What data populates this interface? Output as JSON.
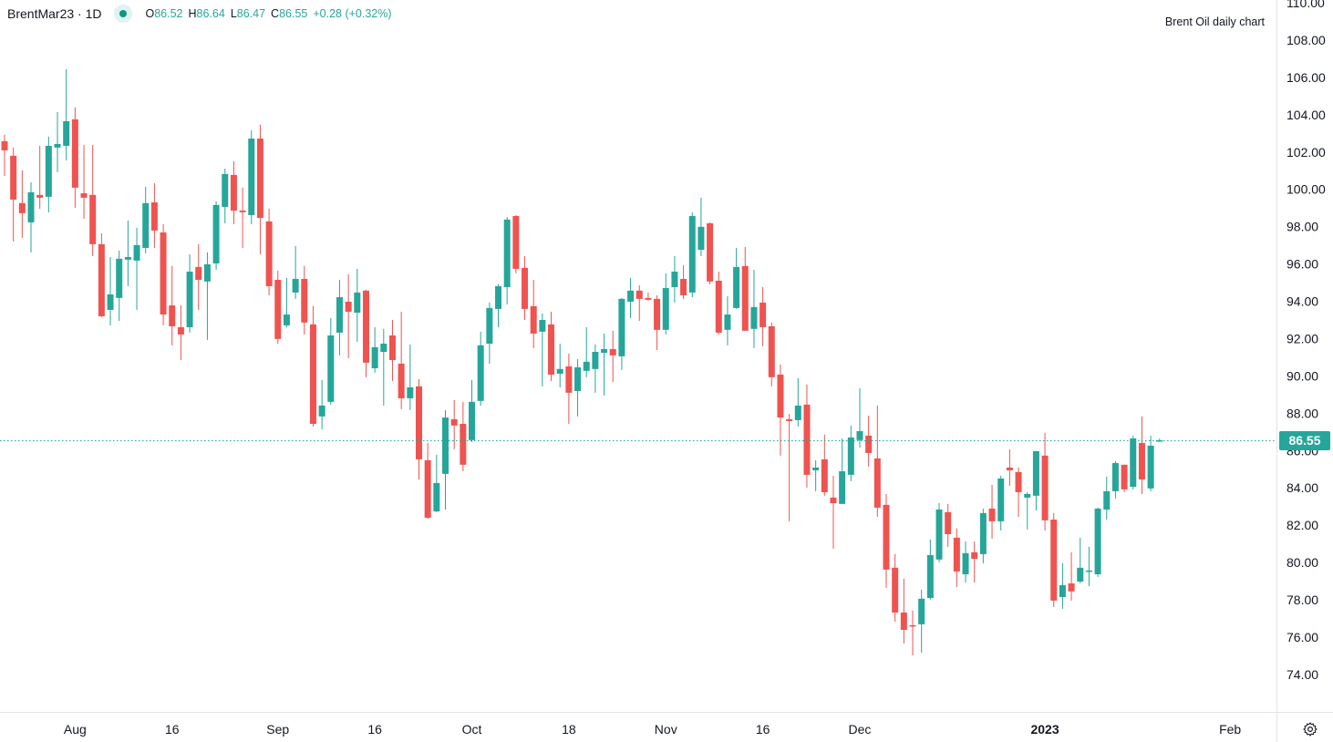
{
  "header": {
    "symbol": "BrentMar23 · 1D",
    "status_icon": "market-open-dot-icon",
    "ohlc": {
      "o_label": "O",
      "o": "86.52",
      "h_label": "H",
      "h": "86.64",
      "l_label": "L",
      "l": "86.47",
      "c_label": "C",
      "c": "86.55",
      "change": "+0.28 (+0.32%)"
    }
  },
  "annotation": "Brent Oil daily chart",
  "settings_icon": "gear-icon",
  "colors": {
    "up": "#26a69a",
    "down": "#ef5350",
    "price_line": "#26a69a",
    "axis_border": "#e0e3eb"
  },
  "chart_data": {
    "type": "candlestick",
    "title": "",
    "xlabel": "",
    "ylabel": "",
    "ylim": [
      74,
      110
    ],
    "grid": false,
    "current_price": "86.55",
    "y_ticks": [
      "74.00",
      "76.00",
      "78.00",
      "80.00",
      "82.00",
      "84.00",
      "86.00",
      "88.00",
      "90.00",
      "92.00",
      "94.00",
      "96.00",
      "98.00",
      "100.00",
      "102.00",
      "104.00",
      "106.00",
      "108.00",
      "110.00"
    ],
    "x_ticks": [
      "Aug",
      "16",
      "Sep",
      "16",
      "Oct",
      "18",
      "Nov",
      "16",
      "Dec",
      "2023",
      "Feb"
    ],
    "ohlc_fields": [
      "open",
      "high",
      "low",
      "close"
    ],
    "candles": [
      [
        102.58,
        102.92,
        100.72,
        102.09
      ],
      [
        101.8,
        102.24,
        97.2,
        99.45
      ],
      [
        99.26,
        101.02,
        97.4,
        98.72
      ],
      [
        98.23,
        100.38,
        96.62,
        99.84
      ],
      [
        99.7,
        102.33,
        98.96,
        99.55
      ],
      [
        99.6,
        102.82,
        98.77,
        102.33
      ],
      [
        102.24,
        104.14,
        100.92,
        102.43
      ],
      [
        102.33,
        106.44,
        101.55,
        103.65
      ],
      [
        103.75,
        104.39,
        99.01,
        100.09
      ],
      [
        99.79,
        102.38,
        98.42,
        99.55
      ],
      [
        99.7,
        102.38,
        96.42,
        97.06
      ],
      [
        97.06,
        97.64,
        93.15,
        93.2
      ],
      [
        93.54,
        96.37,
        92.71,
        94.37
      ],
      [
        94.18,
        96.72,
        92.95,
        96.28
      ],
      [
        96.23,
        98.33,
        94.81,
        96.37
      ],
      [
        96.18,
        97.94,
        93.54,
        97.01
      ],
      [
        96.86,
        100.13,
        96.57,
        99.26
      ],
      [
        99.3,
        100.33,
        96.86,
        97.79
      ],
      [
        97.69,
        98.13,
        92.71,
        93.29
      ],
      [
        93.78,
        95.89,
        91.64,
        92.66
      ],
      [
        92.61,
        93.78,
        90.85,
        92.22
      ],
      [
        92.61,
        96.52,
        92.32,
        95.59
      ],
      [
        95.84,
        97.06,
        93.54,
        95.15
      ],
      [
        95.06,
        96.62,
        91.93,
        95.98
      ],
      [
        96.03,
        99.35,
        95.69,
        99.16
      ],
      [
        99.06,
        101.11,
        98.18,
        100.82
      ],
      [
        100.77,
        101.5,
        98.13,
        98.86
      ],
      [
        98.86,
        100.09,
        96.86,
        98.77
      ],
      [
        98.62,
        103.16,
        98.13,
        102.72
      ],
      [
        102.72,
        103.46,
        96.52,
        98.47
      ],
      [
        98.28,
        98.96,
        94.32,
        94.81
      ],
      [
        95.15,
        95.64,
        91.73,
        91.98
      ],
      [
        92.71,
        95.25,
        92.61,
        93.29
      ],
      [
        94.47,
        96.96,
        94.13,
        95.2
      ],
      [
        95.2,
        95.89,
        92.22,
        92.86
      ],
      [
        92.76,
        93.74,
        87.29,
        87.43
      ],
      [
        87.83,
        89.78,
        87.14,
        88.41
      ],
      [
        88.61,
        93.1,
        88.46,
        92.17
      ],
      [
        92.32,
        95.15,
        91.1,
        94.22
      ],
      [
        93.98,
        95.45,
        90.95,
        93.44
      ],
      [
        93.39,
        95.74,
        91.83,
        94.47
      ],
      [
        94.57,
        94.62,
        89.93,
        90.71
      ],
      [
        90.41,
        92.61,
        90.17,
        91.54
      ],
      [
        91.29,
        92.52,
        88.41,
        91.73
      ],
      [
        92.17,
        93.0,
        89.73,
        90.85
      ],
      [
        90.66,
        93.44,
        88.22,
        88.8
      ],
      [
        88.8,
        91.68,
        88.17,
        89.39
      ],
      [
        89.44,
        89.83,
        84.45,
        85.53
      ],
      [
        85.48,
        86.41,
        82.35,
        82.4
      ],
      [
        82.74,
        85.77,
        82.7,
        84.26
      ],
      [
        84.75,
        88.17,
        82.84,
        87.77
      ],
      [
        87.68,
        88.71,
        86.07,
        87.34
      ],
      [
        87.43,
        88.61,
        84.89,
        85.24
      ],
      [
        86.56,
        89.78,
        86.46,
        88.61
      ],
      [
        88.66,
        92.37,
        88.41,
        91.64
      ],
      [
        91.73,
        93.93,
        90.66,
        93.64
      ],
      [
        93.59,
        94.91,
        92.61,
        94.81
      ],
      [
        94.76,
        98.52,
        93.83,
        98.38
      ],
      [
        98.57,
        98.62,
        95.5,
        95.74
      ],
      [
        95.79,
        96.42,
        93.0,
        93.59
      ],
      [
        93.74,
        95.15,
        91.49,
        92.27
      ],
      [
        92.37,
        93.34,
        89.44,
        93.0
      ],
      [
        92.76,
        93.44,
        89.73,
        90.07
      ],
      [
        90.12,
        91.73,
        89.39,
        90.37
      ],
      [
        90.51,
        91.2,
        87.43,
        89.1
      ],
      [
        89.19,
        90.9,
        87.83,
        90.46
      ],
      [
        90.27,
        92.61,
        89.93,
        90.76
      ],
      [
        90.37,
        91.68,
        89.1,
        91.29
      ],
      [
        91.24,
        92.27,
        88.95,
        91.44
      ],
      [
        91.44,
        92.42,
        89.68,
        91.1
      ],
      [
        91.05,
        94.18,
        90.32,
        94.13
      ],
      [
        93.98,
        95.25,
        93.1,
        94.57
      ],
      [
        94.57,
        94.86,
        92.95,
        94.13
      ],
      [
        94.18,
        94.47,
        94.03,
        94.08
      ],
      [
        94.13,
        94.32,
        91.39,
        92.47
      ],
      [
        92.47,
        95.5,
        92.22,
        94.71
      ],
      [
        94.76,
        96.42,
        93.93,
        95.59
      ],
      [
        95.2,
        95.93,
        94.13,
        94.32
      ],
      [
        94.47,
        98.77,
        94.22,
        98.57
      ],
      [
        96.76,
        99.55,
        96.42,
        97.99
      ],
      [
        98.18,
        98.23,
        94.91,
        95.06
      ],
      [
        95.1,
        95.59,
        92.22,
        92.32
      ],
      [
        92.47,
        94.27,
        91.64,
        93.29
      ],
      [
        93.64,
        96.86,
        93.59,
        95.84
      ],
      [
        95.89,
        96.91,
        92.42,
        92.42
      ],
      [
        92.52,
        95.69,
        91.49,
        93.69
      ],
      [
        93.93,
        94.76,
        91.59,
        92.61
      ],
      [
        92.66,
        92.86,
        89.44,
        89.93
      ],
      [
        90.07,
        90.61,
        85.73,
        87.77
      ],
      [
        87.68,
        87.97,
        82.21,
        87.58
      ],
      [
        87.63,
        89.88,
        87.29,
        88.41
      ],
      [
        88.46,
        89.54,
        84.02,
        84.7
      ],
      [
        84.94,
        85.48,
        83.82,
        85.09
      ],
      [
        85.53,
        86.85,
        83.58,
        83.77
      ],
      [
        83.48,
        84.65,
        80.74,
        83.18
      ],
      [
        83.14,
        86.65,
        83.14,
        84.89
      ],
      [
        84.7,
        87.34,
        84.36,
        86.7
      ],
      [
        86.56,
        89.34,
        86.16,
        87.04
      ],
      [
        86.8,
        87.87,
        85.14,
        85.87
      ],
      [
        85.58,
        88.41,
        82.45,
        82.94
      ],
      [
        83.09,
        83.67,
        78.64,
        79.62
      ],
      [
        79.72,
        80.45,
        76.83,
        77.32
      ],
      [
        77.32,
        79.13,
        75.66,
        76.39
      ],
      [
        76.64,
        77.42,
        75.02,
        76.59
      ],
      [
        76.69,
        78.54,
        75.17,
        78.06
      ],
      [
        78.1,
        81.23,
        78.01,
        80.4
      ],
      [
        80.16,
        83.18,
        80.01,
        82.84
      ],
      [
        82.7,
        83.14,
        80.84,
        81.52
      ],
      [
        81.33,
        81.82,
        78.69,
        79.52
      ],
      [
        79.37,
        81.13,
        78.93,
        80.5
      ],
      [
        80.55,
        81.13,
        78.93,
        80.2
      ],
      [
        80.45,
        82.89,
        79.96,
        82.65
      ],
      [
        82.89,
        84.16,
        81.28,
        82.21
      ],
      [
        82.21,
        84.65,
        81.72,
        84.5
      ],
      [
        85.09,
        86.07,
        84.11,
        84.94
      ],
      [
        84.85,
        85.09,
        82.45,
        83.77
      ],
      [
        83.48,
        83.77,
        81.77,
        83.67
      ],
      [
        83.58,
        85.97,
        82.79,
        85.97
      ],
      [
        85.73,
        86.95,
        81.72,
        82.26
      ],
      [
        82.3,
        82.65,
        77.62,
        77.96
      ],
      [
        78.15,
        79.96,
        77.52,
        78.79
      ],
      [
        78.88,
        80.55,
        77.96,
        78.45
      ],
      [
        78.98,
        81.33,
        78.88,
        79.72
      ],
      [
        79.52,
        80.84,
        78.74,
        79.57
      ],
      [
        79.37,
        82.94,
        79.23,
        82.89
      ],
      [
        82.84,
        84.6,
        82.3,
        83.82
      ],
      [
        83.82,
        85.43,
        83.43,
        85.33
      ],
      [
        85.24,
        85.24,
        83.77,
        83.92
      ],
      [
        84.06,
        86.8,
        83.92,
        86.65
      ],
      [
        86.41,
        87.83,
        83.67,
        84.45
      ],
      [
        83.97,
        86.8,
        83.82,
        86.26
      ],
      [
        86.52,
        86.64,
        86.47,
        86.55
      ]
    ]
  }
}
